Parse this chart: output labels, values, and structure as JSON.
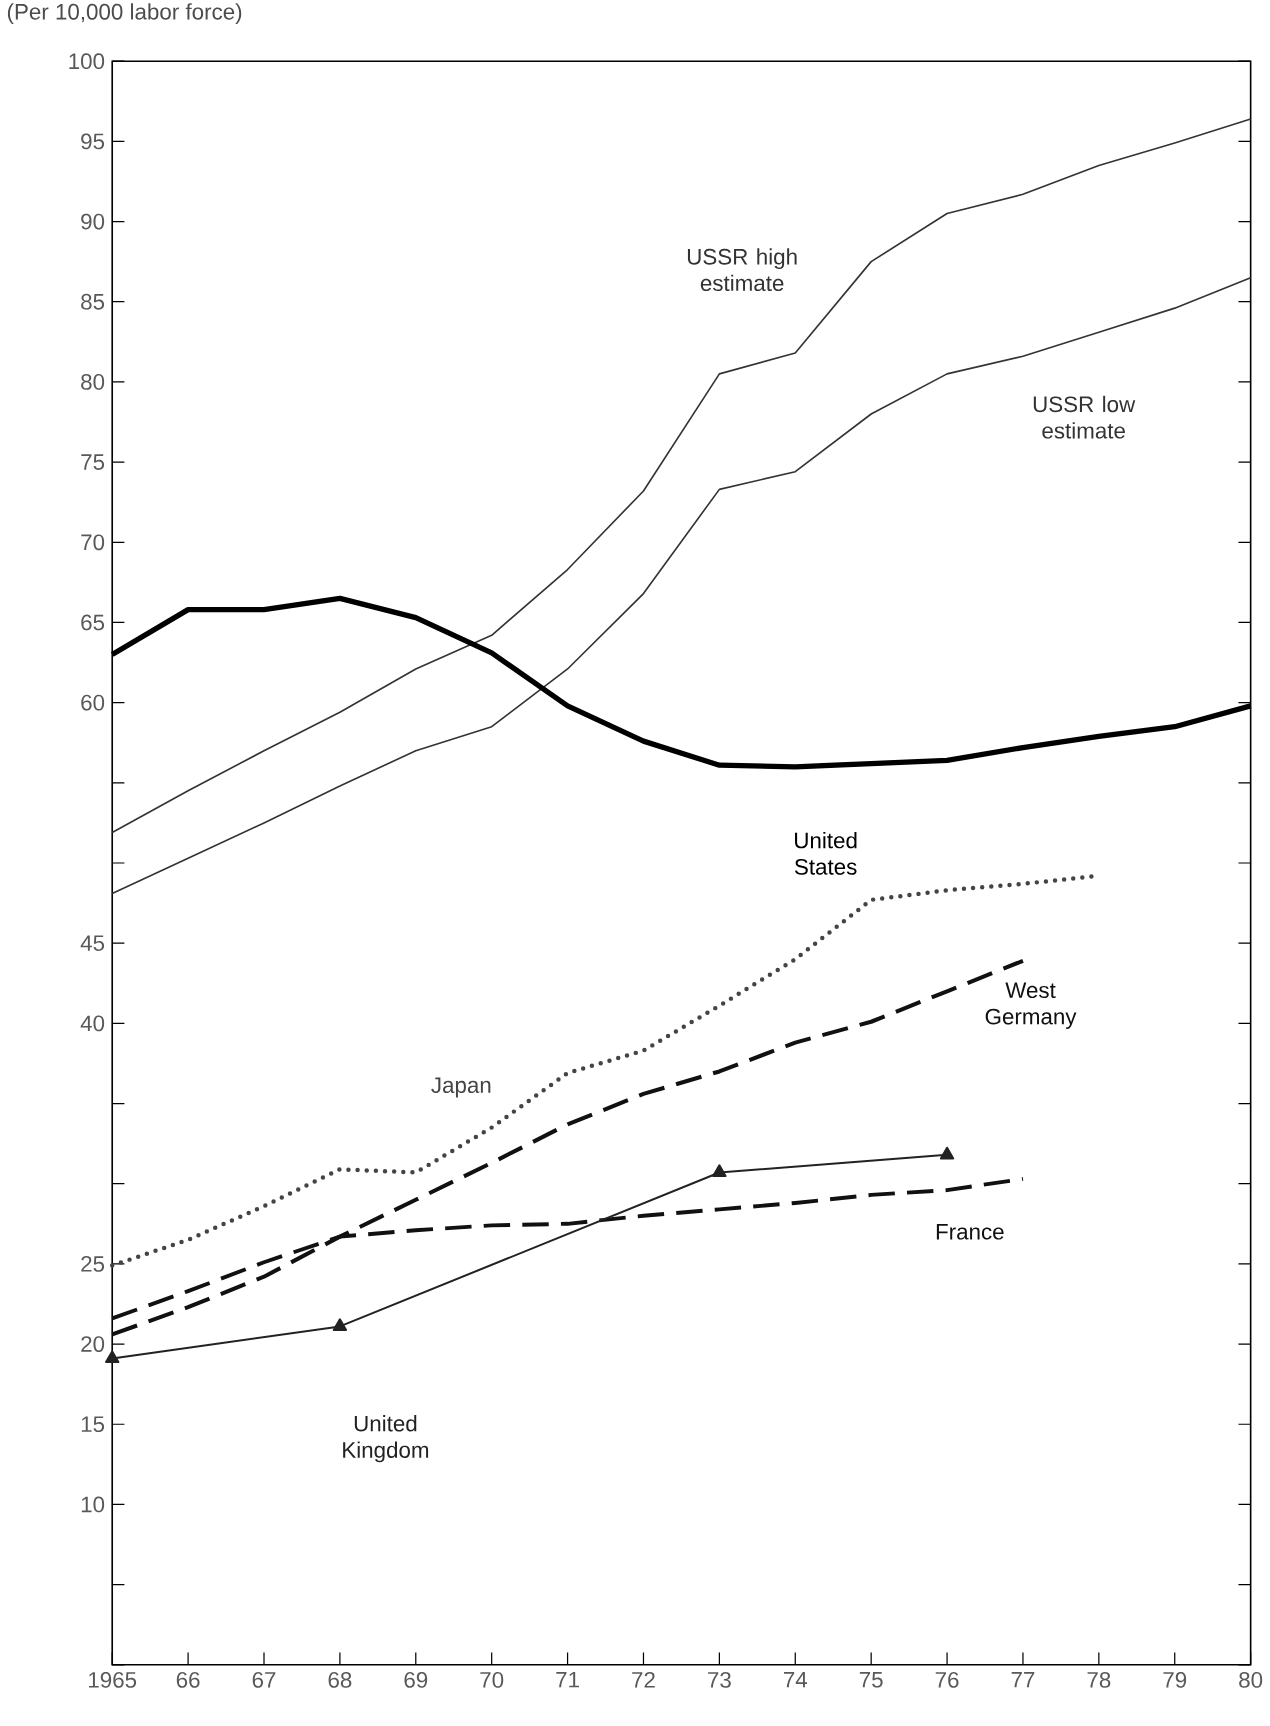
{
  "chart_data": {
    "type": "line",
    "ylabel": "(Per 10,000 labor force)",
    "x": [
      1965,
      1966,
      1967,
      1968,
      1969,
      1970,
      1971,
      1972,
      1973,
      1974,
      1975,
      1976,
      1977,
      1978,
      1979,
      1980
    ],
    "series": [
      {
        "name": "USSR high estimate",
        "color": "#333333",
        "line_style": "solid",
        "values": [
          51.9,
          54.5,
          57.0,
          59.4,
          62.1,
          64.2,
          68.3,
          73.2,
          80.5,
          81.8,
          87.5,
          90.5,
          91.7,
          93.5,
          94.9,
          96.4
        ]
      },
      {
        "name": "USSR low estimate",
        "color": "#333333",
        "line_style": "solid",
        "values": [
          48.1,
          50.3,
          52.5,
          54.8,
          57.0,
          58.5,
          62.1,
          66.8,
          73.3,
          74.4,
          78.0,
          80.5,
          81.6,
          83.1,
          84.6,
          86.5
        ]
      },
      {
        "name": "United States",
        "color": "#000000",
        "line_style": "solid",
        "values": [
          63.0,
          65.8,
          65.8,
          66.5,
          65.3,
          63.1,
          59.8,
          57.6,
          56.1,
          56.0,
          56.2,
          56.4,
          57.2,
          57.9,
          58.5,
          59.8
        ]
      },
      {
        "name": "Japan",
        "color": "#444444",
        "line_style": "dotted",
        "values": [
          24.9,
          26.5,
          28.6,
          30.9,
          30.7,
          33.5,
          36.9,
          38.3,
          41.1,
          44.0,
          47.7,
          48.3,
          48.7,
          49.2,
          null,
          null
        ]
      },
      {
        "name": "West Germany",
        "color": "#111111",
        "line_style": "dashed",
        "values": [
          20.6,
          22.3,
          24.2,
          26.7,
          29.0,
          31.3,
          33.7,
          35.6,
          37.0,
          38.8,
          40.1,
          42.0,
          43.9,
          null,
          null,
          null
        ]
      },
      {
        "name": "France",
        "color": "#111111",
        "line_style": "dashed",
        "values": [
          21.6,
          23.3,
          25.1,
          26.7,
          27.1,
          27.4,
          27.5,
          28.0,
          28.4,
          28.8,
          29.3,
          29.6,
          30.3,
          null,
          null,
          null
        ]
      },
      {
        "name": "United Kingdom",
        "color": "#222222",
        "line_style": "solid",
        "marker": "triangle",
        "x": [
          1965,
          1968,
          1973,
          1976
        ],
        "values": [
          19.1,
          21.1,
          30.7,
          31.8
        ]
      }
    ],
    "xlim": [
      1965,
      1980
    ],
    "xticks": [
      1965,
      {
        "value": 1966,
        "label": "66"
      },
      {
        "value": 1967,
        "label": "67"
      },
      {
        "value": 1968,
        "label": "68"
      },
      {
        "value": 1969,
        "label": "69"
      },
      {
        "value": 1970,
        "label": "70"
      },
      {
        "value": 1971,
        "label": "71"
      },
      {
        "value": 1972,
        "label": "72"
      },
      {
        "value": 1973,
        "label": "73"
      },
      {
        "value": 1974,
        "label": "74"
      },
      {
        "value": 1975,
        "label": "75"
      },
      {
        "value": 1976,
        "label": "76"
      },
      {
        "value": 1977,
        "label": "77"
      },
      {
        "value": 1978,
        "label": "78"
      },
      {
        "value": 1979,
        "label": "79"
      },
      {
        "value": 1980,
        "label": "80"
      }
    ],
    "ylim": [
      0,
      100
    ],
    "yticks": [
      {
        "value": 0,
        "label": null
      },
      {
        "value": 5,
        "label": null
      },
      10,
      15,
      20,
      25,
      {
        "value": 30,
        "label": null
      },
      {
        "value": 35,
        "label": null
      },
      40,
      45,
      {
        "value": 50,
        "label": null
      },
      {
        "value": 55,
        "label": null
      },
      60,
      65,
      70,
      75,
      80,
      85,
      90,
      95,
      100
    ],
    "grid": false
  }
}
